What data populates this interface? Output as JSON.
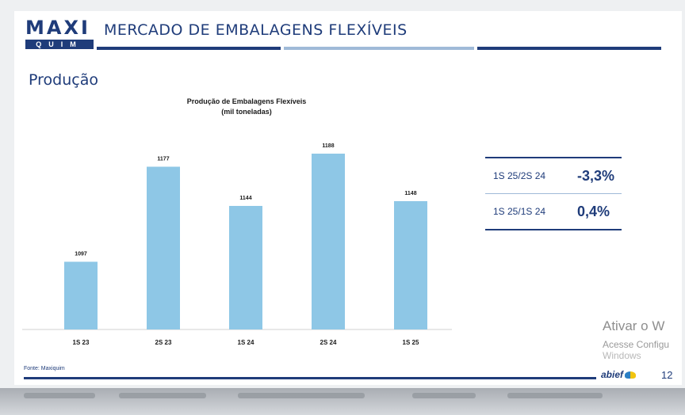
{
  "header": {
    "logo_top": "MAXI",
    "logo_bottom": "QUIM",
    "title": "MERCADO DE EMBALAGENS FLEXÍVEIS",
    "colors": {
      "primary": "#1f3c7a",
      "light": "#9fbad8",
      "bar": "#8ec7e6"
    }
  },
  "section_title": "Produção",
  "chart_data": {
    "type": "bar",
    "title": "Produção de Embalagens Flexíveis",
    "subtitle": "(mil toneladas)",
    "categories": [
      "1S 23",
      "2S 23",
      "1S 24",
      "2S 24",
      "1S 25"
    ],
    "values": [
      1097,
      1177,
      1144,
      1188,
      1148
    ],
    "ylim": [
      1040,
      1200
    ],
    "grid": false,
    "bar_color": "#8ec7e6"
  },
  "kpi_table": {
    "rows": [
      {
        "label": "1S 25/2S 24",
        "value": "-3,3%"
      },
      {
        "label": "1S 25/1S 24",
        "value": "0,4%"
      }
    ]
  },
  "source": "Fonte: Maxiquim",
  "footer": {
    "logo": "abief",
    "page_number": "12"
  },
  "watermark": {
    "line1": "Ativar o W",
    "line2": "Acesse Configu",
    "line3": "Windows"
  }
}
